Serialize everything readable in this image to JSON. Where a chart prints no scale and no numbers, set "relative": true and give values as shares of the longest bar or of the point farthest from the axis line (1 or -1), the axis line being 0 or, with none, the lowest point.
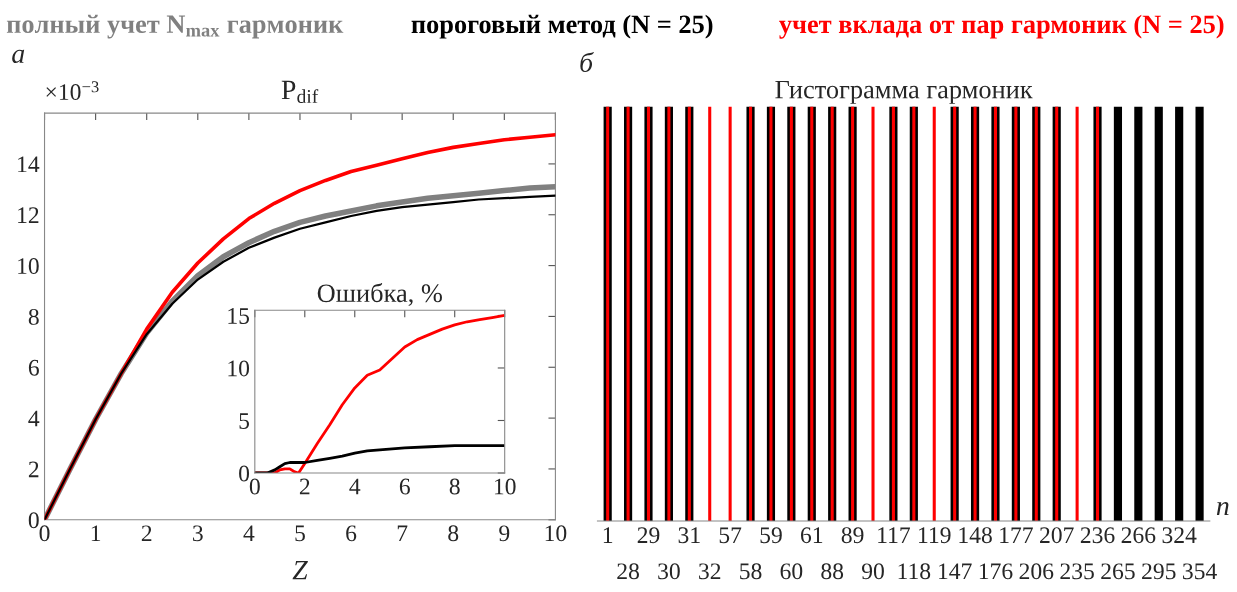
{
  "chart_data": [
    {
      "type": "line",
      "title": "P$_{dif}$",
      "xlabel": "Z",
      "annotations": [
        "а",
        "×10$^{−3}$"
      ],
      "legend": "top",
      "xlim": [
        0,
        10
      ],
      "ylim": [
        0,
        16
      ],
      "xticks": [
        0,
        1,
        2,
        3,
        4,
        5,
        6,
        7,
        8,
        9,
        10
      ],
      "yticks": [
        0,
        2,
        4,
        6,
        8,
        10,
        12,
        14
      ],
      "grid": false,
      "x": [
        0,
        0.5,
        1,
        1.5,
        2,
        2.5,
        3,
        3.5,
        4,
        4.5,
        5,
        5.5,
        6,
        6.5,
        7,
        7.5,
        8,
        8.5,
        9,
        9.5,
        10
      ],
      "series": [
        {
          "name": "полный учет N$_{max}$ гармоник",
          "color": "#808080",
          "values": [
            0,
            2.0,
            3.95,
            5.75,
            7.35,
            8.6,
            9.6,
            10.35,
            10.9,
            11.35,
            11.7,
            11.95,
            12.15,
            12.35,
            12.5,
            12.65,
            12.75,
            12.85,
            12.95,
            13.05,
            13.1
          ]
        },
        {
          "name": "пороговый метод (N = 25)",
          "color": "#000000",
          "values": [
            0,
            2.0,
            3.95,
            5.75,
            7.3,
            8.5,
            9.45,
            10.15,
            10.7,
            11.1,
            11.45,
            11.7,
            11.95,
            12.15,
            12.3,
            12.4,
            12.5,
            12.6,
            12.65,
            12.7,
            12.75
          ]
        },
        {
          "name": "учет вклада от пар гармоник (N = 25)",
          "color": "#ff0000",
          "values": [
            0,
            2.0,
            3.95,
            5.75,
            7.5,
            8.95,
            10.1,
            11.05,
            11.85,
            12.45,
            12.95,
            13.35,
            13.7,
            13.95,
            14.2,
            14.45,
            14.65,
            14.8,
            14.95,
            15.05,
            15.15
          ]
        }
      ]
    },
    {
      "type": "line",
      "title": "Ошибка, %",
      "xlim": [
        0,
        10
      ],
      "ylim": [
        0,
        15.5
      ],
      "xticks": [
        0,
        2,
        4,
        6,
        8,
        10
      ],
      "yticks": [
        0,
        5,
        10,
        15
      ],
      "grid": false,
      "series": [
        {
          "color": "#ff0000",
          "x": [
            0,
            0.5,
            0.8,
            1.0,
            1.2,
            1.4,
            1.6,
            1.75,
            2,
            2.5,
            3,
            3.5,
            4,
            4.5,
            5,
            5.5,
            6,
            6.5,
            7,
            7.5,
            8,
            8.5,
            9,
            9.5,
            10
          ],
          "values": [
            0,
            0,
            0,
            0.3,
            0.4,
            0.4,
            0.1,
            0,
            0.9,
            2.8,
            4.6,
            6.5,
            8.1,
            9.3,
            9.8,
            10.9,
            12.0,
            12.7,
            13.2,
            13.7,
            14.1,
            14.4,
            14.6,
            14.8,
            15.0
          ]
        },
        {
          "color": "#000000",
          "x": [
            0,
            0.5,
            0.8,
            1.0,
            1.2,
            1.4,
            1.8,
            2,
            2.5,
            3,
            3.5,
            4,
            4.5,
            5,
            6,
            7,
            8,
            9,
            10
          ],
          "values": [
            0,
            0,
            0.3,
            0.6,
            0.9,
            1.0,
            1.0,
            1.0,
            1.2,
            1.4,
            1.6,
            1.9,
            2.1,
            2.2,
            2.4,
            2.5,
            2.6,
            2.6,
            2.6
          ]
        }
      ]
    },
    {
      "type": "bar",
      "title": "Гистограмма гармоник",
      "xlabel": "n",
      "annotations": [
        "б"
      ],
      "relative": true,
      "categories": [
        "1",
        "28",
        "29",
        "30",
        "31",
        "32",
        "57",
        "58",
        "59",
        "60",
        "61",
        "88",
        "89",
        "90",
        "117",
        "118",
        "119",
        "147",
        "148",
        "176",
        "177",
        "206",
        "207",
        "235",
        "236",
        "265",
        "266",
        "295",
        "324",
        "354"
      ],
      "series": [
        {
          "color": "#000000",
          "values": [
            1,
            1,
            1,
            1,
            1,
            null,
            null,
            1,
            1,
            1,
            1,
            1,
            1,
            null,
            1,
            1,
            null,
            1,
            1,
            1,
            1,
            1,
            1,
            null,
            1,
            1,
            1,
            1,
            1,
            1
          ]
        },
        {
          "color": "#ff0000",
          "values": [
            1,
            1,
            1,
            1,
            1,
            1,
            1,
            1,
            1,
            1,
            1,
            1,
            1,
            1,
            1,
            1,
            1,
            1,
            1,
            1,
            1,
            1,
            1,
            1,
            1,
            null,
            null,
            null,
            null,
            null
          ]
        }
      ]
    }
  ]
}
